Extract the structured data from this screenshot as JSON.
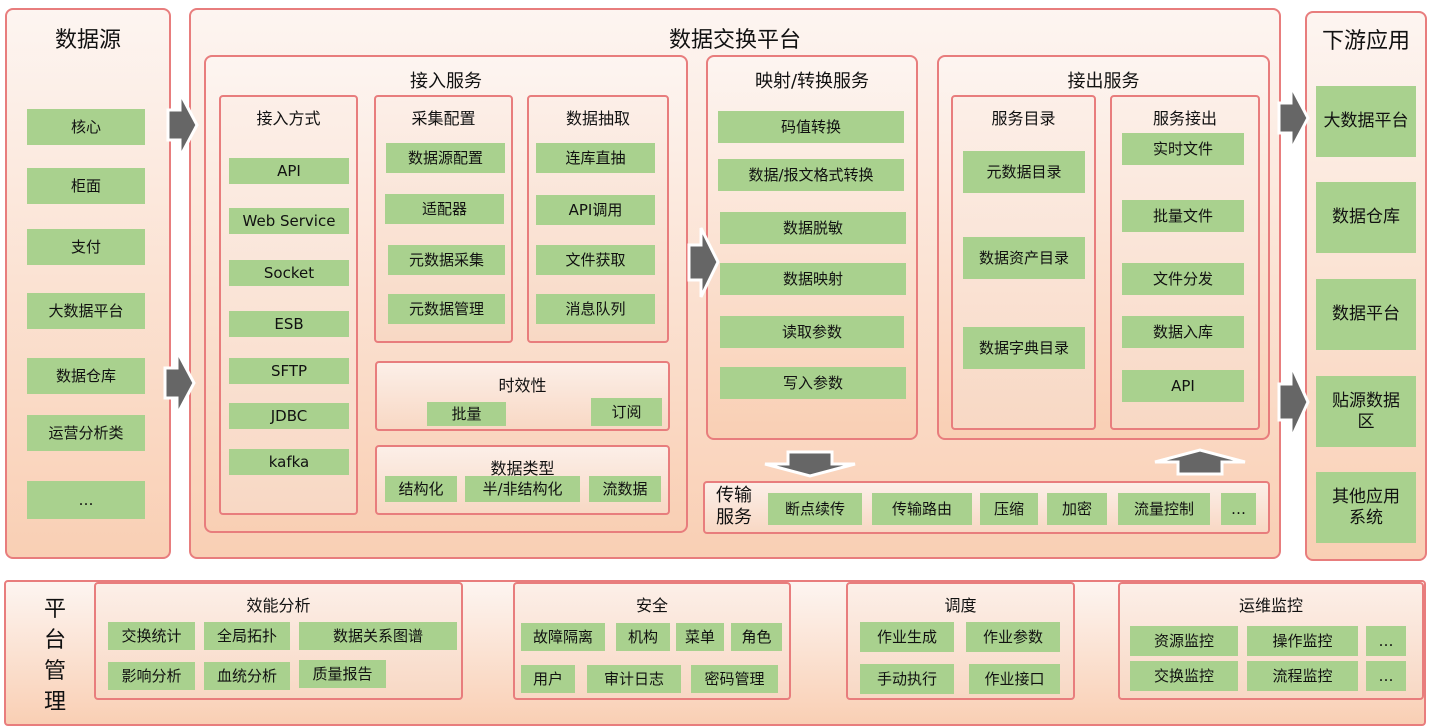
{
  "source": {
    "title": "数据源",
    "items": [
      "核心",
      "柜面",
      "支付",
      "大数据平台",
      "数据仓库",
      "运营分析类",
      "…"
    ]
  },
  "platform": {
    "title": "数据交换平台",
    "ingest": {
      "title": "接入服务",
      "methods": {
        "title": "接入方式",
        "items": [
          "API",
          "Web Service",
          "Socket",
          "ESB",
          "SFTP",
          "JDBC",
          "kafka"
        ]
      },
      "collect": {
        "title": "采集配置",
        "items": [
          "数据源配置",
          "适配器",
          "元数据采集",
          "元数据管理"
        ]
      },
      "extract": {
        "title": "数据抽取",
        "items": [
          "连库直抽",
          "API调用",
          "文件获取",
          "消息队列"
        ]
      },
      "timeliness": {
        "title": "时效性",
        "items": [
          "批量",
          "订阅"
        ]
      },
      "datatype": {
        "title": "数据类型",
        "items": [
          "结构化",
          "半/非结构化",
          "流数据"
        ]
      }
    },
    "mapping": {
      "title": "映射/转换服务",
      "items": [
        "码值转换",
        "数据/报文格式转换",
        "数据脱敏",
        "数据映射",
        "读取参数",
        "写入参数"
      ]
    },
    "egress": {
      "title": "接出服务",
      "catalog": {
        "title": "服务目录",
        "items": [
          "元数据目录",
          "数据资产目录",
          "数据字典目录"
        ]
      },
      "out": {
        "title": "服务接出",
        "items": [
          "实时文件",
          "批量文件",
          "文件分发",
          "数据入库",
          "API"
        ]
      }
    },
    "transport": {
      "title": "传输服务",
      "items": [
        "断点续传",
        "传输路由",
        "压缩",
        "加密",
        "流量控制",
        "…"
      ]
    }
  },
  "downstream": {
    "title": "下游应用",
    "items": [
      "大数据平台",
      "数据仓库",
      "数据平台",
      "贴源数据区",
      "其他应用系统"
    ]
  },
  "management": {
    "title": "平台管理",
    "perf": {
      "title": "效能分析",
      "items": [
        "交换统计",
        "全局拓扑",
        "数据关系图谱",
        "影响分析",
        "血统分析",
        "质量报告"
      ]
    },
    "security": {
      "title": "安全",
      "items": [
        "故障隔离",
        "机构",
        "菜单",
        "角色",
        "用户",
        "审计日志",
        "密码管理"
      ]
    },
    "schedule": {
      "title": "调度",
      "items": [
        "作业生成",
        "作业参数",
        "手动执行",
        "作业接口"
      ]
    },
    "ops": {
      "title": "运维监控",
      "items": [
        "资源监控",
        "操作监控",
        "…",
        "交换监控",
        "流程监控",
        "…"
      ]
    }
  },
  "colors": {
    "green": "#a9d18e",
    "border": "#e87d7d",
    "arrow": "#666666"
  }
}
